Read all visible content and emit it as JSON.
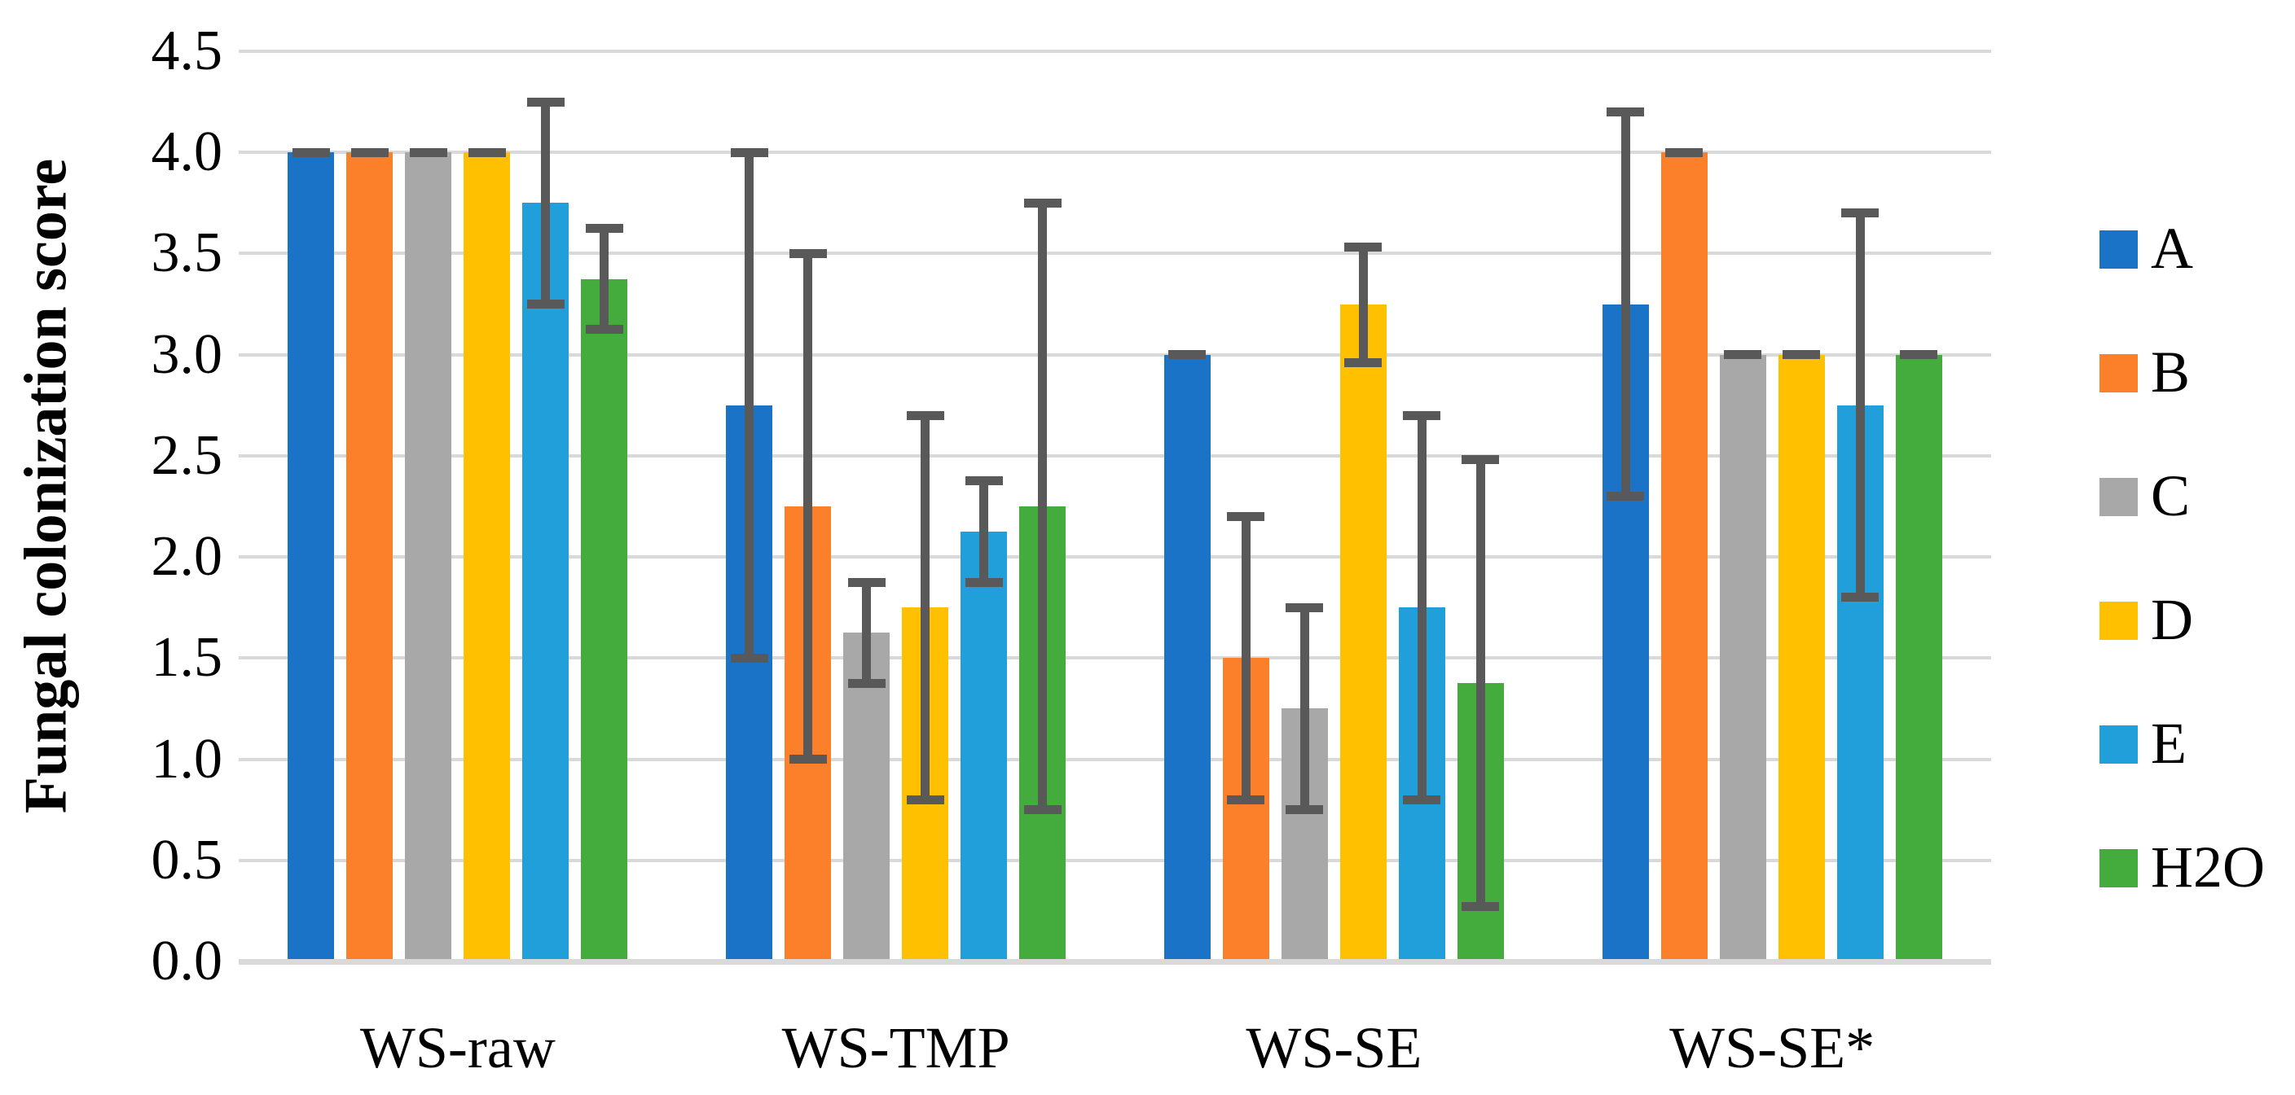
{
  "chart_data": {
    "type": "bar",
    "title": "",
    "xlabel": "",
    "ylabel": "Fungal colonization score",
    "categories": [
      "WS-raw",
      "WS-TMP",
      "WS-SE",
      "WS-SE*"
    ],
    "y_ticks": [
      "0.0",
      "0.5",
      "1.0",
      "1.5",
      "2.0",
      "2.5",
      "3.0",
      "3.5",
      "4.0",
      "4.5"
    ],
    "ylim": [
      0,
      4.5
    ],
    "grid": true,
    "legend_position": "right",
    "error_bars": true,
    "series": [
      {
        "name": "A",
        "color": "#1b73c8",
        "values": [
          4.0,
          2.75,
          3.0,
          3.25
        ],
        "err_lo": [
          4.0,
          1.5,
          3.0,
          2.3
        ],
        "err_hi": [
          4.0,
          4.0,
          3.0,
          4.2
        ]
      },
      {
        "name": "B",
        "color": "#fb8029",
        "values": [
          4.0,
          2.25,
          1.5,
          4.0
        ],
        "err_lo": [
          4.0,
          1.0,
          0.8,
          4.0
        ],
        "err_hi": [
          4.0,
          3.5,
          2.2,
          4.0
        ]
      },
      {
        "name": "C",
        "color": "#a8a8a8",
        "values": [
          4.0,
          1.625,
          1.25,
          3.0
        ],
        "err_lo": [
          4.0,
          1.375,
          0.75,
          3.0
        ],
        "err_hi": [
          4.0,
          1.875,
          1.75,
          3.0
        ]
      },
      {
        "name": "D",
        "color": "#ffc000",
        "values": [
          4.0,
          1.75,
          3.25,
          3.0
        ],
        "err_lo": [
          4.0,
          0.8,
          2.96,
          3.0
        ],
        "err_hi": [
          4.0,
          2.7,
          3.53,
          3.0
        ]
      },
      {
        "name": "E",
        "color": "#219fdb",
        "values": [
          3.75,
          2.125,
          1.75,
          2.75
        ],
        "err_lo": [
          3.25,
          1.875,
          0.8,
          1.8
        ],
        "err_hi": [
          4.25,
          2.375,
          2.7,
          3.7
        ]
      },
      {
        "name": "H2O",
        "color": "#44ac3c",
        "values": [
          3.375,
          2.25,
          1.375,
          3.0
        ],
        "err_lo": [
          3.125,
          0.75,
          0.27,
          3.0
        ],
        "err_hi": [
          3.625,
          3.75,
          2.48,
          3.0
        ]
      }
    ],
    "colors": {
      "gridline": "#d9d9d9",
      "axis_line": "#d9d9d9",
      "error_bar": "#595959",
      "text": "#000000",
      "background": "#ffffff"
    }
  }
}
